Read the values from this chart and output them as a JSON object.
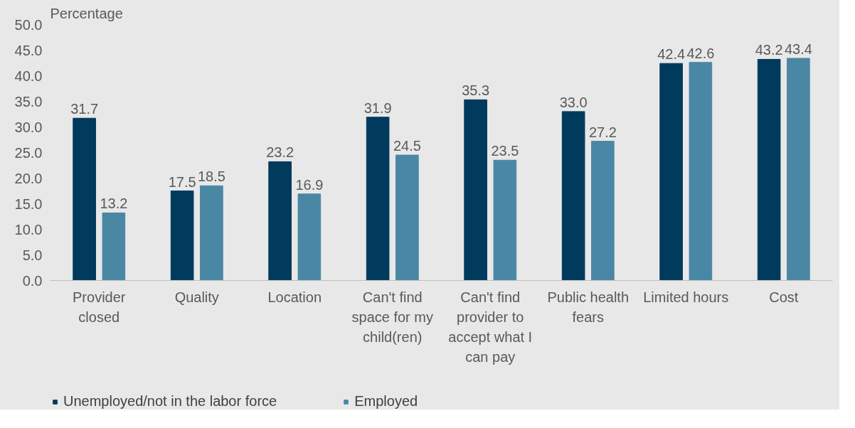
{
  "chart_data": {
    "type": "bar",
    "ylabel": "Percentage",
    "categories": [
      "Provider closed",
      "Quality",
      "Location",
      "Can't find space for my child(ren)",
      "Can't find provider to accept what I can pay",
      "Public health fears",
      "Limited hours",
      "Cost"
    ],
    "series": [
      {
        "name": "Unemployed/not in the labor force",
        "color": "#003a5d",
        "values": [
          31.7,
          17.5,
          23.2,
          31.9,
          35.3,
          33.0,
          42.4,
          43.2
        ],
        "value_labels": [
          "31.7",
          "17.5",
          "23.2",
          "31.9",
          "35.3",
          "33.0",
          "42.4",
          "43.2"
        ]
      },
      {
        "name": "Employed",
        "color": "#4a87a5",
        "values": [
          13.2,
          18.5,
          16.9,
          24.5,
          23.5,
          27.2,
          42.6,
          43.4
        ],
        "value_labels": [
          "13.2",
          "18.5",
          "16.9",
          "24.5",
          "23.5",
          "27.2",
          "42.6",
          "43.4"
        ]
      }
    ],
    "ylim": [
      0,
      50
    ],
    "yticks": [
      {
        "value": 0,
        "label": "0.0"
      },
      {
        "value": 5,
        "label": "5.0"
      },
      {
        "value": 10,
        "label": "10.0"
      },
      {
        "value": 15,
        "label": "15.0"
      },
      {
        "value": 20,
        "label": "20.0"
      },
      {
        "value": 25,
        "label": "25.0"
      },
      {
        "value": 30,
        "label": "30.0"
      },
      {
        "value": 35,
        "label": "35.0"
      },
      {
        "value": 40,
        "label": "40.0"
      },
      {
        "value": 45,
        "label": "45.0"
      },
      {
        "value": 50,
        "label": "50.0"
      }
    ],
    "legend": "bottom"
  }
}
